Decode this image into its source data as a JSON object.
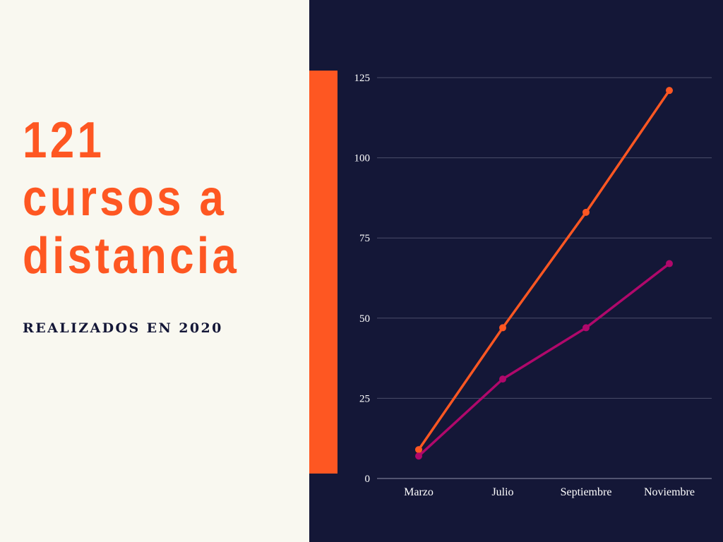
{
  "headline": {
    "line1": "121",
    "line2": "cursos a",
    "line3": "distancia"
  },
  "subtitle": "REALIZADOS EN 2020",
  "colors": {
    "left_background": "#f9f8f0",
    "chart_background": "#141737",
    "accent": "#fe5722",
    "series2": "#b0086b",
    "text_dark": "#141737"
  },
  "chart_data": {
    "type": "line",
    "categories": [
      "Marzo",
      "Julio",
      "Septiembre",
      "Noviembre"
    ],
    "series": [
      {
        "values": [
          9,
          47,
          83,
          121
        ],
        "color": "#fe5722"
      },
      {
        "values": [
          7,
          31,
          47,
          67
        ],
        "color": "#b0086b"
      }
    ],
    "yticks": [
      0,
      25,
      50,
      75,
      100,
      125
    ],
    "ylim": [
      0,
      125
    ],
    "grid": true,
    "legend": "none"
  }
}
